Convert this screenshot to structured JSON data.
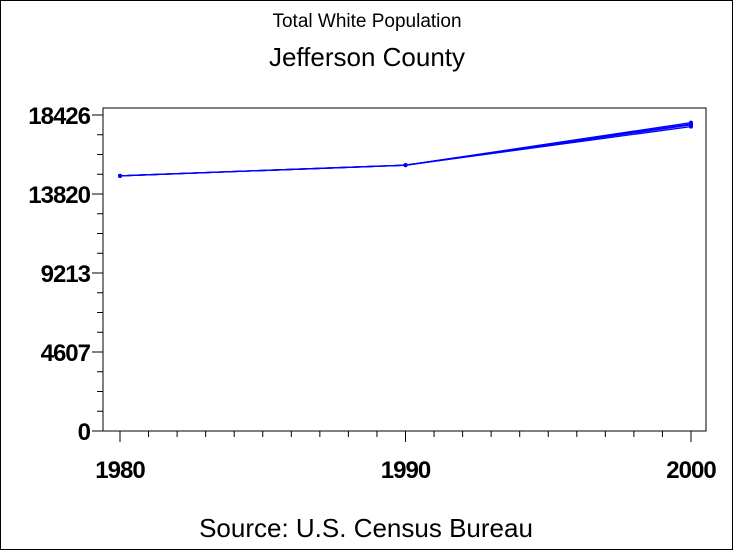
{
  "chart_data": {
    "type": "line",
    "title": "Jefferson County",
    "subtitle": "Total White Population",
    "source": "Source: U.S. Census Bureau",
    "x": [
      1980,
      1990,
      2000
    ],
    "series": [
      {
        "values": [
          14880,
          15500,
          17750
        ],
        "color": "#0000ff"
      },
      {
        "values": [
          14880,
          15500,
          17900
        ],
        "color": "#0000ff"
      },
      {
        "values": [
          14880,
          15500,
          17980
        ],
        "color": "#0000ff"
      },
      {
        "values": [
          14880,
          15500,
          17850
        ],
        "color": "#0000ff"
      }
    ],
    "y_ticks": [
      0,
      4607,
      9213,
      13820,
      18426
    ],
    "x_ticks": [
      1980,
      1990,
      2000
    ],
    "xlim": [
      1980,
      2000
    ],
    "ylim": [
      0,
      18426
    ],
    "grid": false
  }
}
